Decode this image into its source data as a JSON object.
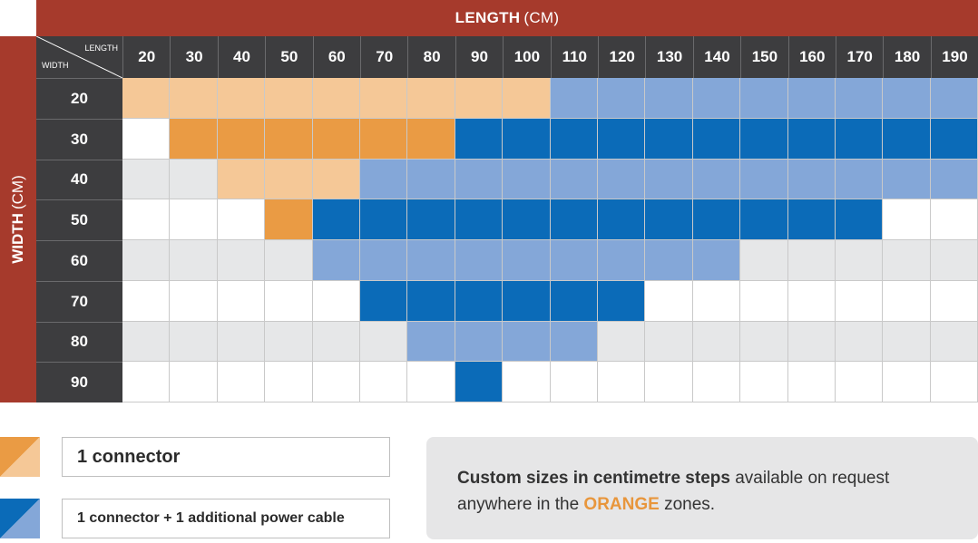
{
  "header": {
    "title_bold": "LENGTH",
    "title_unit": "(CM)"
  },
  "side": {
    "title_bold": "WIDTH",
    "title_unit": "(CM)"
  },
  "corner": {
    "length_label": "LENGTH",
    "width_label": "WIDTH"
  },
  "colors": {
    "light_orange": "#f5c897",
    "dark_orange": "#ea9b44",
    "light_blue": "#84a7d8",
    "dark_blue": "#0b6bb8",
    "gray": "#e6e7e8",
    "white": "#ffffff",
    "header_red": "#a63a2c",
    "header_dark": "#3d3d3f"
  },
  "chart_data": {
    "type": "table",
    "columns": [
      "20",
      "30",
      "40",
      "50",
      "60",
      "70",
      "80",
      "90",
      "100",
      "110",
      "120",
      "130",
      "140",
      "150",
      "160",
      "170",
      "180",
      "190"
    ],
    "rows": [
      {
        "label": "20",
        "cells": [
          "LO",
          "LO",
          "LO",
          "LO",
          "LO",
          "LO",
          "LO",
          "LO",
          "LO",
          "LB",
          "LB",
          "LB",
          "LB",
          "LB",
          "LB",
          "LB",
          "LB",
          "LB"
        ]
      },
      {
        "label": "30",
        "cells": [
          "W",
          "DO",
          "DO",
          "DO",
          "DO",
          "DO",
          "DO",
          "DB",
          "DB",
          "DB",
          "DB",
          "DB",
          "DB",
          "DB",
          "DB",
          "DB",
          "DB",
          "DB"
        ]
      },
      {
        "label": "40",
        "cells": [
          "G",
          "G",
          "LO",
          "LO",
          "LO",
          "LB",
          "LB",
          "LB",
          "LB",
          "LB",
          "LB",
          "LB",
          "LB",
          "LB",
          "LB",
          "LB",
          "LB",
          "LB"
        ]
      },
      {
        "label": "50",
        "cells": [
          "W",
          "W",
          "W",
          "DO",
          "DB",
          "DB",
          "DB",
          "DB",
          "DB",
          "DB",
          "DB",
          "DB",
          "DB",
          "DB",
          "DB",
          "DB",
          "W",
          "W"
        ]
      },
      {
        "label": "60",
        "cells": [
          "G",
          "G",
          "G",
          "G",
          "LB",
          "LB",
          "LB",
          "LB",
          "LB",
          "LB",
          "LB",
          "LB",
          "LB",
          "G",
          "G",
          "G",
          "G",
          "G"
        ]
      },
      {
        "label": "70",
        "cells": [
          "W",
          "W",
          "W",
          "W",
          "W",
          "DB",
          "DB",
          "DB",
          "DB",
          "DB",
          "DB",
          "W",
          "W",
          "W",
          "W",
          "W",
          "W",
          "W"
        ]
      },
      {
        "label": "80",
        "cells": [
          "G",
          "G",
          "G",
          "G",
          "G",
          "G",
          "LB",
          "LB",
          "LB",
          "LB",
          "G",
          "G",
          "G",
          "G",
          "G",
          "G",
          "G",
          "G"
        ]
      },
      {
        "label": "90",
        "cells": [
          "W",
          "W",
          "W",
          "W",
          "W",
          "W",
          "W",
          "DB",
          "W",
          "W",
          "W",
          "W",
          "W",
          "W",
          "W",
          "W",
          "W",
          "W"
        ]
      }
    ]
  },
  "legend": {
    "connector_label": "1 connector",
    "connector_cable_label": "1 connector + 1 additional power cable"
  },
  "note": {
    "bold_text": "Custom sizes in centimetre steps",
    "text1": " available on request anywhere in the ",
    "orange_word": "ORANGE",
    "text2": " zones."
  }
}
